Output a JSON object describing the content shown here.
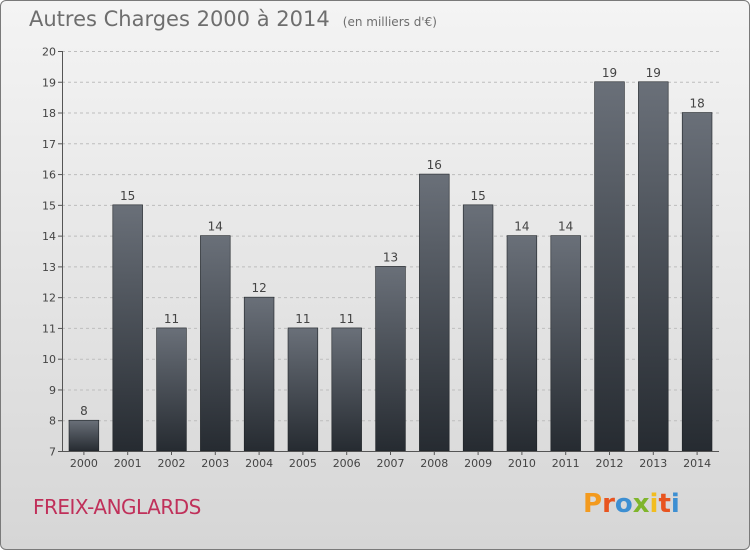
{
  "header": {
    "title": "Autres Charges 2000 à 2014",
    "subtitle": "(en milliers d'€)"
  },
  "footer": {
    "place": "FREIX-ANGLARDS",
    "logo_text": "Proxiti"
  },
  "colors": {
    "bar_top": "#6a7079",
    "bar_bottom": "#262b31",
    "title": "#6e6e6e",
    "place": "#c0305a",
    "logo_letters": [
      "#f39a1e",
      "#e8541f",
      "#3d8fd2",
      "#7fb52c",
      "#f2bd1f",
      "#e8541f",
      "#3d8fd2"
    ]
  },
  "chart_data": {
    "type": "bar",
    "categories": [
      "2000",
      "2001",
      "2002",
      "2003",
      "2004",
      "2005",
      "2006",
      "2007",
      "2008",
      "2009",
      "2010",
      "2011",
      "2012",
      "2013",
      "2014"
    ],
    "values": [
      8,
      15,
      11,
      14,
      12,
      11,
      11,
      13,
      16,
      15,
      14,
      14,
      19,
      19,
      18
    ],
    "title": "Autres Charges 2000 à 2014",
    "xlabel": "",
    "ylabel": "",
    "ylim": [
      7,
      20
    ],
    "yticks": [
      7,
      8,
      9,
      10,
      11,
      12,
      13,
      14,
      15,
      16,
      17,
      18,
      19,
      20
    ],
    "grid": true,
    "data_labels": true
  }
}
